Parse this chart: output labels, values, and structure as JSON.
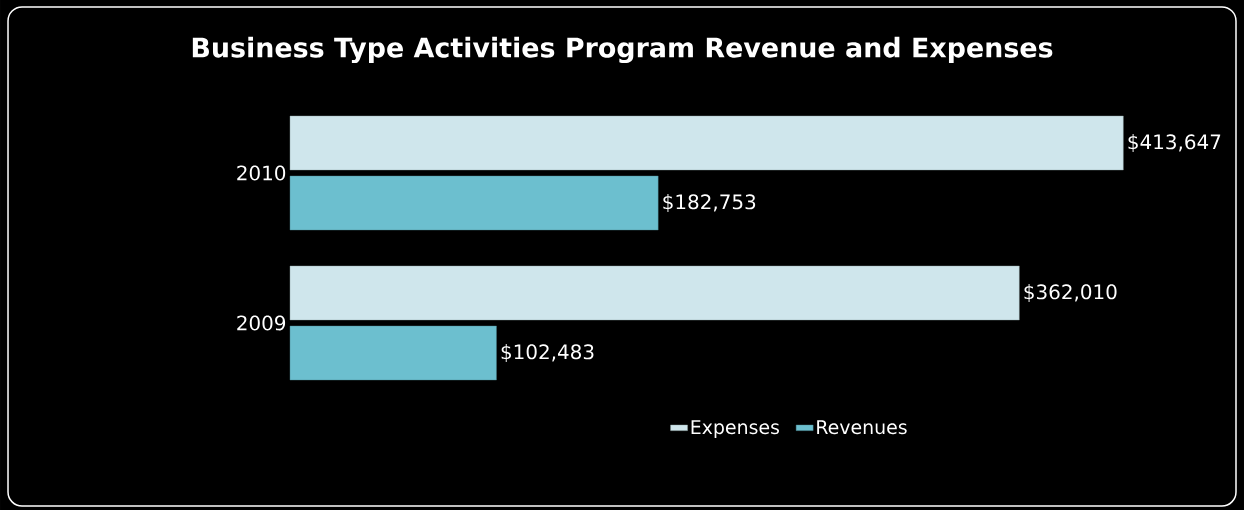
{
  "chart_data": {
    "type": "bar",
    "orientation": "horizontal",
    "title": "Business Type Activities Program Revenue and Expenses",
    "categories": [
      "2010",
      "2009"
    ],
    "series": [
      {
        "name": "Expenses",
        "color": "#cfe6ec",
        "values": [
          413647,
          362010
        ],
        "value_labels": [
          "$413,647",
          "$362,010"
        ]
      },
      {
        "name": "Revenues",
        "color": "#6cbfcf",
        "values": [
          182753,
          102483
        ],
        "value_labels": [
          "$182,753",
          "$102,483"
        ]
      }
    ],
    "legend": "bottom"
  }
}
